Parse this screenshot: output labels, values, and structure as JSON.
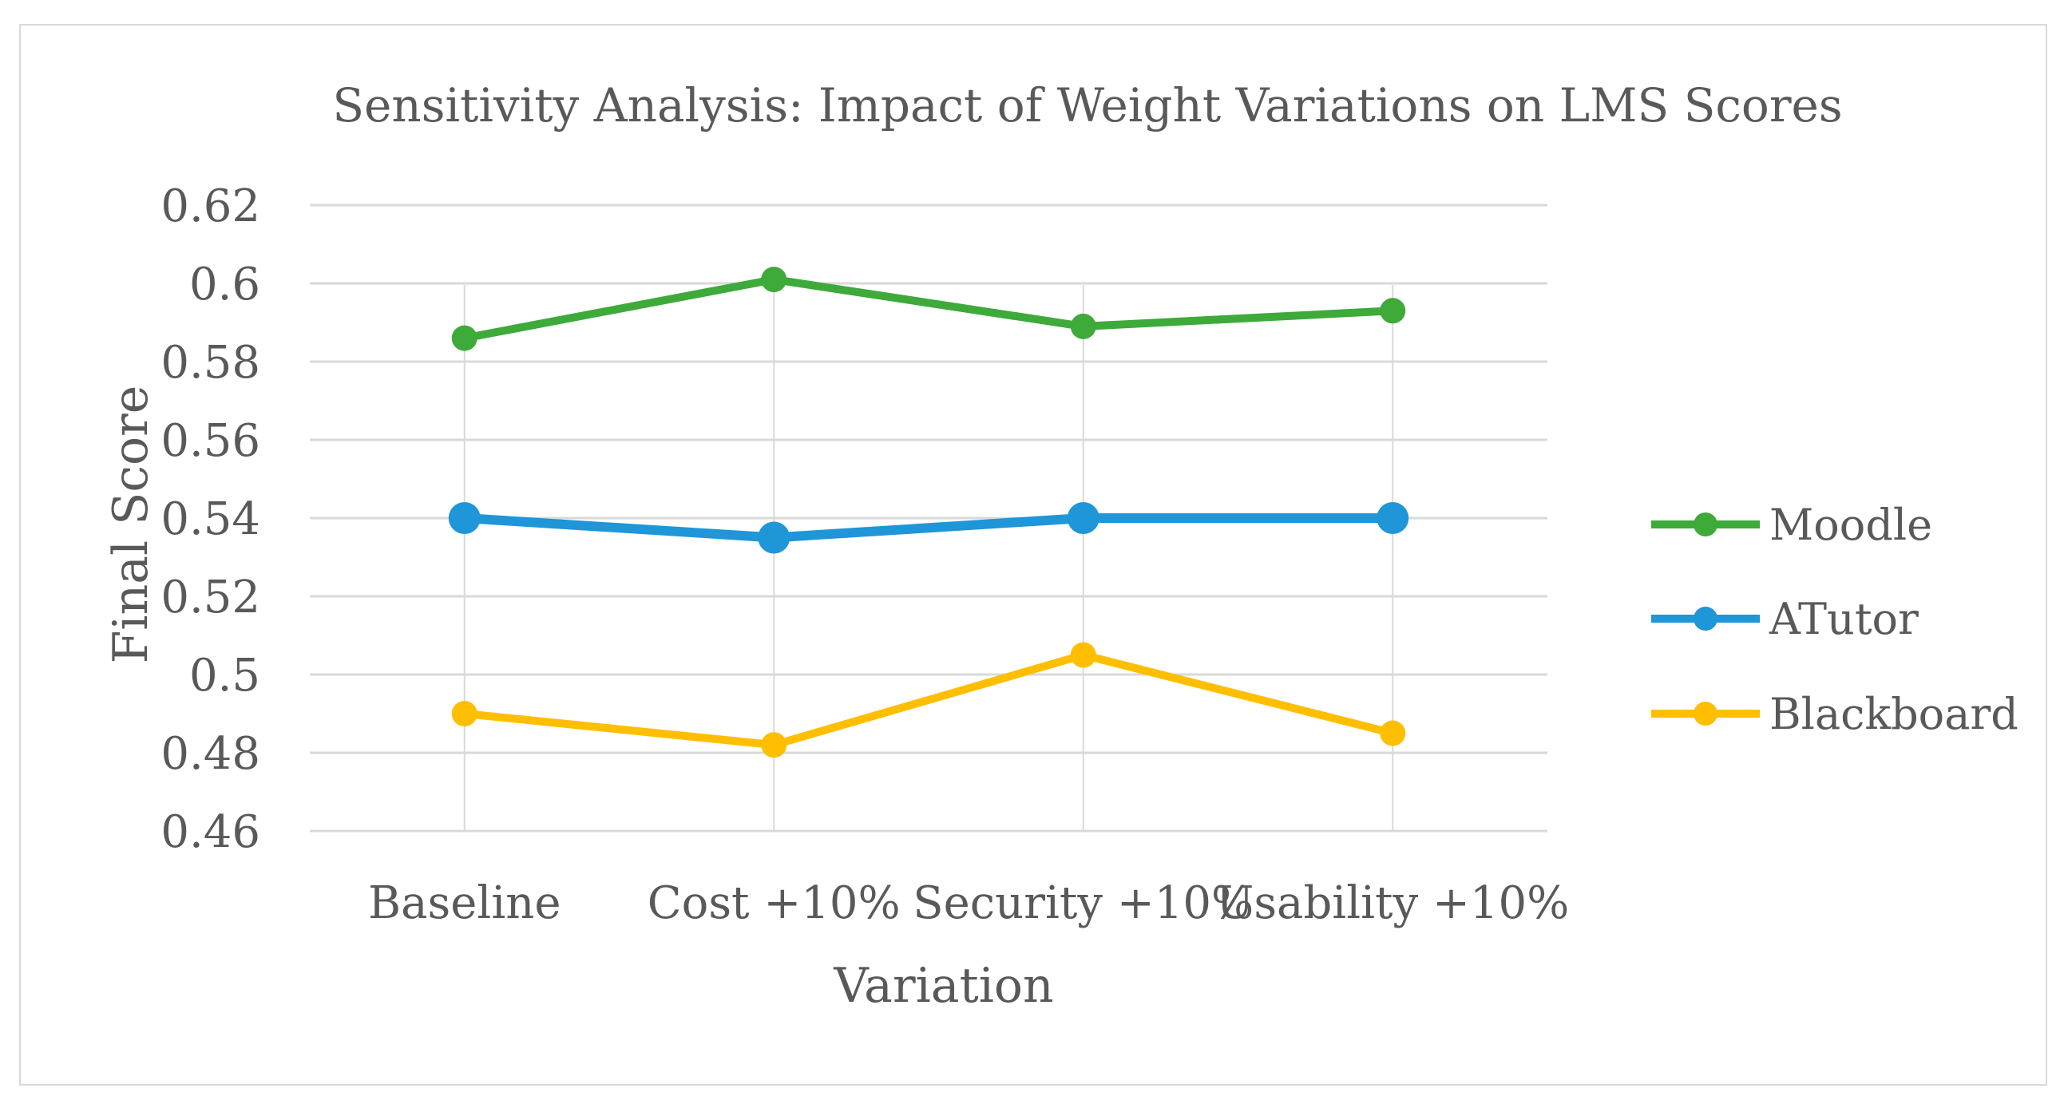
{
  "chart_data": {
    "type": "line",
    "title": "Sensitivity Analysis: Impact of Weight Variations on LMS Scores",
    "xlabel": "Variation",
    "ylabel": "Final Score",
    "categories": [
      "Baseline",
      "Cost +10%",
      "Security +10%",
      "Usability +10%"
    ],
    "ylim": [
      0.46,
      0.62
    ],
    "yticks": [
      "0.62",
      "0.6",
      "0.58",
      "0.56",
      "0.54",
      "0.52",
      "0.5",
      "0.48",
      "0.46"
    ],
    "grid": true,
    "legend_position": "right",
    "series": [
      {
        "name": "Moodle",
        "color": "#3daa3a",
        "values": [
          0.586,
          0.601,
          0.589,
          0.593
        ]
      },
      {
        "name": "ATutor",
        "color": "#1e96d8",
        "values": [
          0.54,
          0.535,
          0.54,
          0.54
        ]
      },
      {
        "name": "Blackboard",
        "color": "#ffbf00",
        "values": [
          0.49,
          0.482,
          0.505,
          0.485
        ]
      }
    ]
  }
}
